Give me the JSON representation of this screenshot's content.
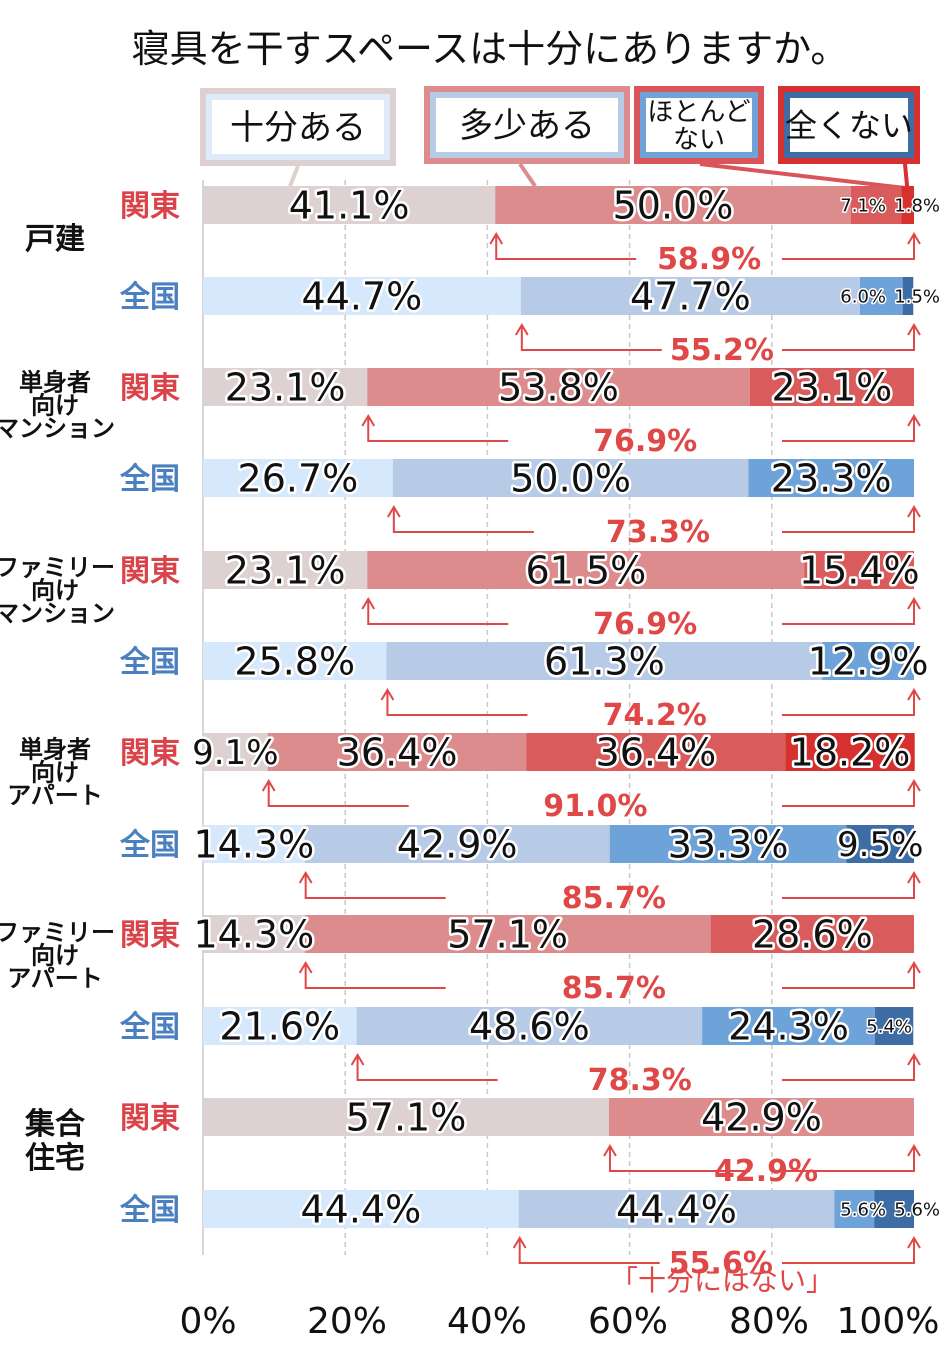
{
  "chart_data": {
    "type": "bar",
    "orientation": "horizontal-stacked-100",
    "title": "寝具を干すスペースは十分にありますか。",
    "legend": [
      {
        "name": "十分ある",
        "color": "#dfe9f7"
      },
      {
        "name": "多少ある",
        "color": "#dc8c8c"
      },
      {
        "name": "ほとんど\nない",
        "color": "#6da3d8"
      },
      {
        "name": "全くない",
        "color": "#3f6a9b"
      }
    ],
    "x_ticks": [
      "0%",
      "20%",
      "40%",
      "60%",
      "80%",
      "100%"
    ],
    "xlim": [
      0,
      100
    ],
    "grid": true,
    "sum_note": "「十分にはない」",
    "region_labels": {
      "kanto": "関東",
      "zenkoku": "全国"
    },
    "groups": [
      {
        "name": "戸建",
        "rows": [
          {
            "region": "kanto",
            "values": [
              41.1,
              50.0,
              7.1,
              1.8
            ],
            "labels": [
              "41.1%",
              "50.0%",
              "7.1%",
              "1.8%"
            ],
            "sum": "58.9%"
          },
          {
            "region": "zenkoku",
            "values": [
              44.7,
              47.7,
              6.0,
              1.5
            ],
            "labels": [
              "44.7%",
              "47.7%",
              "6.0%",
              "1.5%"
            ],
            "sum": "55.2%"
          }
        ]
      },
      {
        "name": "単身者\n向け\nマンション",
        "rows": [
          {
            "region": "kanto",
            "values": [
              23.1,
              53.8,
              23.1,
              0
            ],
            "labels": [
              "23.1%",
              "53.8%",
              "23.1%",
              ""
            ],
            "sum": "76.9%"
          },
          {
            "region": "zenkoku",
            "values": [
              26.7,
              50.0,
              23.3,
              0
            ],
            "labels": [
              "26.7%",
              "50.0%",
              "23.3%",
              ""
            ],
            "sum": "73.3%"
          }
        ]
      },
      {
        "name": "ファミリー\n向け\nマンション",
        "rows": [
          {
            "region": "kanto",
            "values": [
              23.1,
              61.5,
              15.4,
              0
            ],
            "labels": [
              "23.1%",
              "61.5%",
              "15.4%",
              ""
            ],
            "sum": "76.9%"
          },
          {
            "region": "zenkoku",
            "values": [
              25.8,
              61.3,
              12.9,
              0
            ],
            "labels": [
              "25.8%",
              "61.3%",
              "12.9%",
              ""
            ],
            "sum": "74.2%"
          }
        ]
      },
      {
        "name": "単身者\n向け\nアパート",
        "rows": [
          {
            "region": "kanto",
            "values": [
              9.1,
              36.4,
              36.4,
              18.2
            ],
            "labels": [
              "9.1%",
              "36.4%",
              "36.4%",
              "18.2%"
            ],
            "sum": "91.0%"
          },
          {
            "region": "zenkoku",
            "values": [
              14.3,
              42.9,
              33.3,
              9.5
            ],
            "labels": [
              "14.3%",
              "42.9%",
              "33.3%",
              "9.5%"
            ],
            "sum": "85.7%"
          }
        ]
      },
      {
        "name": "ファミリー\n向け\nアパート",
        "rows": [
          {
            "region": "kanto",
            "values": [
              14.3,
              57.1,
              28.6,
              0
            ],
            "labels": [
              "14.3%",
              "57.1%",
              "28.6%",
              ""
            ],
            "sum": "85.7%"
          },
          {
            "region": "zenkoku",
            "values": [
              21.6,
              48.6,
              24.3,
              5.4
            ],
            "labels": [
              "21.6%",
              "48.6%",
              "24.3%",
              "5.4%"
            ],
            "sum": "78.3%"
          }
        ]
      },
      {
        "name": "集合\n住宅",
        "rows": [
          {
            "region": "kanto",
            "values": [
              57.1,
              42.9,
              0,
              0
            ],
            "labels": [
              "57.1%",
              "42.9%",
              "",
              ""
            ],
            "sum": "42.9%"
          },
          {
            "region": "zenkoku",
            "values": [
              44.4,
              44.4,
              5.6,
              5.6
            ],
            "labels": [
              "44.4%",
              "44.4%",
              "5.6%",
              "5.6%"
            ],
            "sum": "55.6%"
          }
        ]
      }
    ],
    "colors": {
      "kanto": [
        "#ddd1d1",
        "#dc8c8c",
        "#d95b5b",
        "#d6312e"
      ],
      "zenkoku": [
        "#d6e8fb",
        "#b8cbe6",
        "#6da3d8",
        "#3d6da4"
      ]
    }
  }
}
